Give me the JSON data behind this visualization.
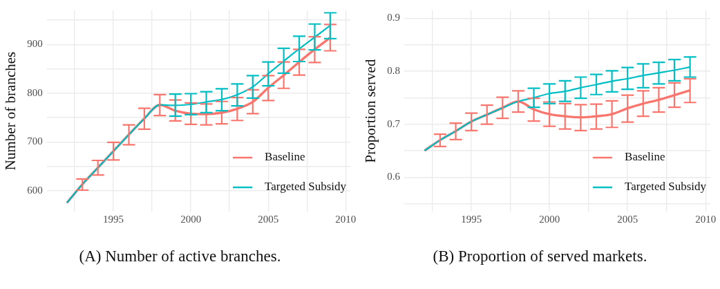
{
  "chart_data": [
    {
      "type": "line",
      "ylabel": "Number of branches",
      "annotations": [
        "(A) Number of active branches."
      ],
      "legend": "bottom right",
      "grid": true,
      "x": [
        1992,
        1993,
        1994,
        1995,
        1996,
        1997,
        1998,
        1999,
        2000,
        2001,
        2002,
        2003,
        2004,
        2005,
        2006,
        2007,
        2008,
        2009
      ],
      "xlim": [
        1990.7,
        2010.3
      ],
      "xticks": [
        {
          "value": 1992.5,
          "label": null
        },
        1995,
        {
          "value": 1997.5,
          "label": null
        },
        2000,
        {
          "value": 2002.5,
          "label": null
        },
        2005,
        {
          "value": 2007.5,
          "label": null
        },
        2010
      ],
      "ylim": [
        557,
        970
      ],
      "yticks": [
        600,
        {
          "value": 650,
          "label": null
        },
        700,
        {
          "value": 750,
          "label": null
        },
        800,
        {
          "value": 850,
          "label": null
        },
        900,
        {
          "value": 950,
          "label": null
        }
      ],
      "series": [
        {
          "name": "Baseline",
          "color": "#f8766d",
          "values": [
            575,
            613,
            647,
            681,
            715,
            748,
            776,
            764,
            758,
            757,
            760,
            768,
            782,
            811,
            837,
            864,
            890,
            914
          ],
          "errors": [
            null,
            [
              601,
              624
            ],
            [
              632,
              662
            ],
            [
              663,
              699
            ],
            [
              694,
              735
            ],
            [
              726,
              769
            ],
            [
              754,
              797
            ],
            [
              743,
              786
            ],
            [
              736,
              780
            ],
            [
              735,
              778
            ],
            [
              737,
              783
            ],
            [
              744,
              791
            ],
            [
              758,
              807
            ],
            [
              785,
              836
            ],
            [
              810,
              864
            ],
            [
              837,
              890
            ],
            [
              863,
              916
            ],
            [
              887,
              941
            ]
          ]
        },
        {
          "name": "Targeted Subsidy",
          "color": "#00bfc4",
          "values": [
            575,
            613,
            647,
            681,
            715,
            748,
            776,
            775,
            777,
            782,
            787,
            797,
            813,
            840,
            866,
            891,
            915,
            939
          ],
          "errors": [
            null,
            null,
            null,
            null,
            null,
            null,
            null,
            [
              753,
              798
            ],
            [
              756,
              799
            ],
            [
              760,
              803
            ],
            [
              764,
              809
            ],
            [
              774,
              819
            ],
            [
              790,
              836
            ],
            [
              815,
              864
            ],
            [
              841,
              892
            ],
            [
              865,
              917
            ],
            [
              889,
              942
            ],
            [
              912,
              965
            ]
          ]
        }
      ]
    },
    {
      "type": "line",
      "ylabel": "Proportion served",
      "annotations": [
        "(B) Proportion of served markets."
      ],
      "legend": "bottom right",
      "grid": true,
      "x": [
        1992,
        1993,
        1994,
        1995,
        1996,
        1997,
        1998,
        1999,
        2000,
        2001,
        2002,
        2003,
        2004,
        2005,
        2006,
        2007,
        2008,
        2009
      ],
      "xlim": [
        1990.7,
        2010.3
      ],
      "xticks": [
        {
          "value": 1992.5,
          "label": null
        },
        1995,
        {
          "value": 1997.5,
          "label": null
        },
        2000,
        {
          "value": 2002.5,
          "label": null
        },
        2005,
        {
          "value": 2007.5,
          "label": null
        },
        2010
      ],
      "ylim": [
        0.535,
        0.915
      ],
      "yticks": [
        {
          "value": 0.55,
          "label": null
        },
        0.6,
        {
          "value": 0.65,
          "label": null
        },
        0.7,
        {
          "value": 0.75,
          "label": null
        },
        0.8,
        {
          "value": 0.85,
          "label": null
        },
        0.9
      ],
      "series": [
        {
          "name": "Baseline",
          "color": "#f8766d",
          "values": [
            0.65,
            0.67,
            0.687,
            0.705,
            0.718,
            0.731,
            0.743,
            0.728,
            0.719,
            0.715,
            0.713,
            0.715,
            0.719,
            0.73,
            0.739,
            0.746,
            0.755,
            0.764
          ],
          "errors": [
            null,
            [
              0.658,
              0.681
            ],
            [
              0.671,
              0.702
            ],
            [
              0.688,
              0.721
            ],
            [
              0.7,
              0.736
            ],
            [
              0.711,
              0.751
            ],
            [
              0.723,
              0.763
            ],
            [
              0.706,
              0.749
            ],
            [
              0.696,
              0.742
            ],
            [
              0.691,
              0.739
            ],
            [
              0.688,
              0.737
            ],
            [
              0.691,
              0.738
            ],
            [
              0.694,
              0.744
            ],
            [
              0.704,
              0.755
            ],
            [
              0.715,
              0.763
            ],
            [
              0.723,
              0.769
            ],
            [
              0.732,
              0.778
            ],
            [
              0.741,
              0.786
            ]
          ]
        },
        {
          "name": "Targeted Subsidy",
          "color": "#00bfc4",
          "values": [
            0.65,
            0.67,
            0.687,
            0.705,
            0.718,
            0.731,
            0.743,
            0.75,
            0.758,
            0.762,
            0.769,
            0.775,
            0.781,
            0.786,
            0.792,
            0.797,
            0.802,
            0.808
          ],
          "errors": [
            null,
            null,
            null,
            null,
            null,
            null,
            null,
            [
              0.732,
              0.768
            ],
            [
              0.739,
              0.776
            ],
            [
              0.743,
              0.782
            ],
            [
              0.749,
              0.789
            ],
            [
              0.756,
              0.794
            ],
            [
              0.761,
              0.801
            ],
            [
              0.766,
              0.807
            ],
            [
              0.769,
              0.814
            ],
            [
              0.776,
              0.817
            ],
            [
              0.782,
              0.822
            ],
            [
              0.789,
              0.827
            ]
          ]
        }
      ]
    }
  ]
}
